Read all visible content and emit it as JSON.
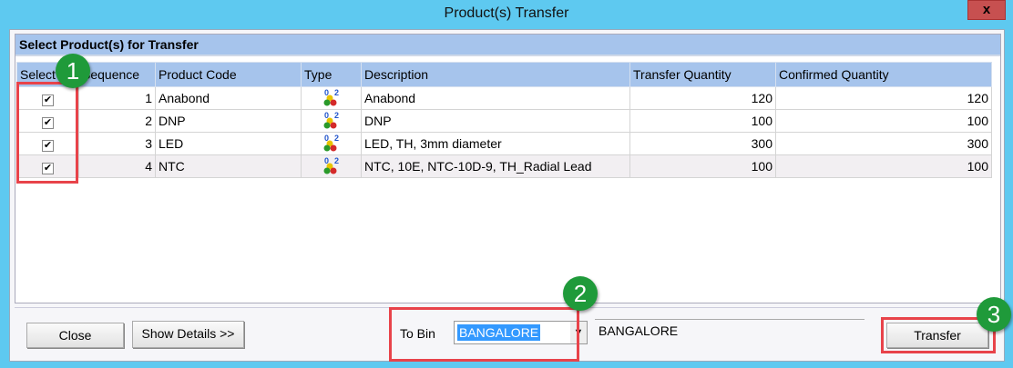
{
  "window": {
    "title": "Product(s) Transfer",
    "close_label": "x"
  },
  "group": {
    "title": "Select Product(s) for Transfer"
  },
  "table": {
    "columns": [
      "Select",
      "Sequence",
      "Product Code",
      "Type",
      "Description",
      "Transfer Quantity",
      "Confirmed Quantity"
    ],
    "rows": [
      {
        "selected": true,
        "sequence": "1",
        "code": "Anabond",
        "description": "Anabond",
        "transfer_qty": "120",
        "confirmed_qty": "120"
      },
      {
        "selected": true,
        "sequence": "2",
        "code": "DNP",
        "description": "DNP",
        "transfer_qty": "100",
        "confirmed_qty": "100"
      },
      {
        "selected": true,
        "sequence": "3",
        "code": "LED",
        "description": "LED, TH, 3mm diameter",
        "transfer_qty": "300",
        "confirmed_qty": "300"
      },
      {
        "selected": true,
        "sequence": "4",
        "code": "NTC",
        "description": "NTC, 10E, NTC-10D-9, TH_Radial Lead",
        "transfer_qty": "100",
        "confirmed_qty": "100"
      }
    ],
    "type_icon": "component-type-icon"
  },
  "footer": {
    "close": "Close",
    "show_details": "Show Details >>",
    "to_bin_label": "To Bin",
    "to_bin_value": "BANGALORE",
    "bin_name": "BANGALORE",
    "transfer": "Transfer"
  },
  "annotations": [
    "1",
    "2",
    "3"
  ],
  "colors": {
    "titlebar": "#5ec9f0",
    "header": "#a6c4ec",
    "annotation": "#e8434a",
    "badge": "#1f9a3a",
    "selection": "#3399ff"
  }
}
